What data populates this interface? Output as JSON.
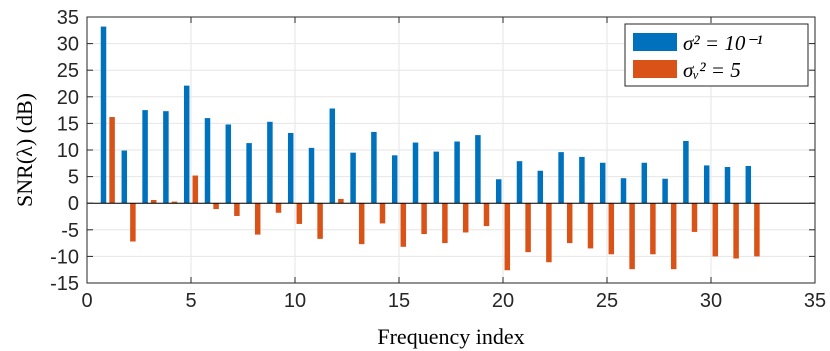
{
  "chart_data": {
    "type": "bar",
    "xlabel": "Frequency index",
    "ylabel": "SNR(λ) (dB)",
    "xlim": [
      0,
      35
    ],
    "ylim": [
      -15,
      35
    ],
    "xticks": [
      0,
      5,
      10,
      15,
      20,
      25,
      30,
      35
    ],
    "yticks": [
      -15,
      -10,
      -5,
      0,
      5,
      10,
      15,
      20,
      25,
      30,
      35
    ],
    "grid": true,
    "legend_position": "top-right",
    "x": [
      1,
      2,
      3,
      4,
      5,
      6,
      7,
      8,
      9,
      10,
      11,
      12,
      13,
      14,
      15,
      16,
      17,
      18,
      19,
      20,
      21,
      22,
      23,
      24,
      25,
      26,
      27,
      28,
      29,
      30,
      31,
      32
    ],
    "series": [
      {
        "name": "σ² = 10⁻¹",
        "color": "#0072BD",
        "values": [
          33.2,
          9.9,
          17.5,
          17.3,
          22.1,
          16.0,
          14.8,
          11.3,
          15.3,
          13.2,
          10.4,
          17.8,
          9.5,
          13.4,
          9.0,
          11.4,
          9.7,
          11.6,
          12.8,
          4.5,
          7.9,
          6.1,
          9.6,
          8.7,
          7.6,
          4.7,
          7.6,
          4.6,
          11.7,
          7.1,
          6.8,
          7.0
        ]
      },
      {
        "name": "σᵥ² = 5",
        "color": "#D95319",
        "values": [
          16.2,
          -7.2,
          0.6,
          0.3,
          5.2,
          -1.1,
          -2.4,
          -5.9,
          -1.8,
          -3.9,
          -6.7,
          0.8,
          -7.7,
          -3.8,
          -8.2,
          -5.8,
          -7.5,
          -5.5,
          -4.3,
          -12.6,
          -9.2,
          -11.1,
          -7.5,
          -8.5,
          -9.6,
          -12.4,
          -9.6,
          -12.4,
          -5.4,
          -10.0,
          -10.4,
          -10.0
        ]
      }
    ]
  }
}
